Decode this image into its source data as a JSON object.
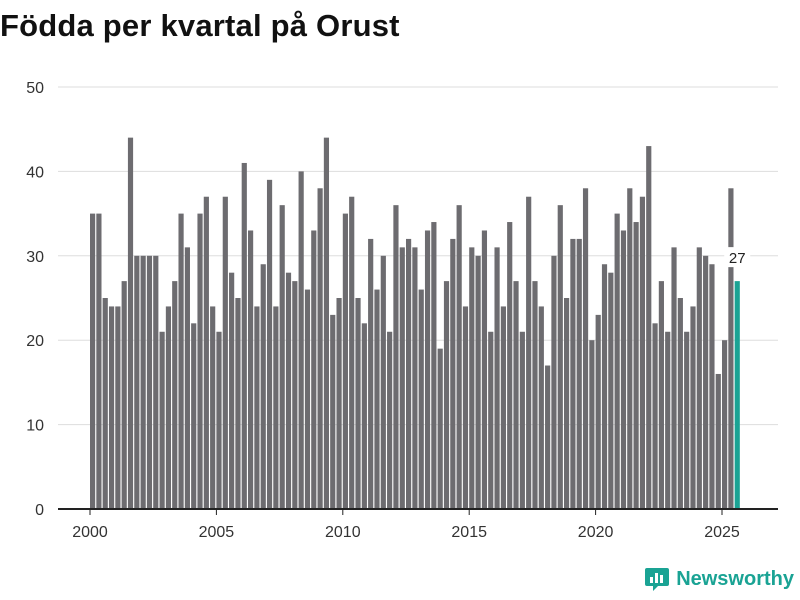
{
  "title": "Födda per kvartal på Orust",
  "colors": {
    "bar": "#6d6c70",
    "highlight": "#1aa394",
    "grid": "#dddddd",
    "axis": "#222222",
    "text": "#333333"
  },
  "brand": {
    "name": "Newsworthy",
    "icon": "chart-bars-icon"
  },
  "chart_data": {
    "type": "bar",
    "title": "Födda per kvartal på Orust",
    "xlabel": "",
    "ylabel": "",
    "ylim": [
      0,
      50
    ],
    "yticks": [
      0,
      10,
      20,
      30,
      40,
      50
    ],
    "xticks": [
      2000,
      2005,
      2010,
      2015,
      2020,
      2025
    ],
    "start_year": 2000,
    "periods_per_year": 4,
    "highlight_last": true,
    "highlight_label": "27",
    "values": [
      35,
      35,
      25,
      24,
      24,
      27,
      44,
      30,
      30,
      30,
      30,
      21,
      24,
      27,
      35,
      31,
      22,
      35,
      37,
      24,
      21,
      37,
      28,
      25,
      41,
      33,
      24,
      29,
      39,
      24,
      36,
      28,
      27,
      40,
      26,
      33,
      38,
      44,
      23,
      25,
      35,
      37,
      25,
      22,
      32,
      26,
      30,
      21,
      36,
      31,
      32,
      31,
      26,
      33,
      34,
      19,
      27,
      32,
      36,
      24,
      31,
      30,
      33,
      21,
      31,
      24,
      34,
      27,
      21,
      37,
      27,
      24,
      17,
      30,
      36,
      25,
      32,
      32,
      38,
      20,
      23,
      29,
      28,
      35,
      33,
      38,
      34,
      37,
      43,
      22,
      27,
      21,
      31,
      25,
      21,
      24,
      31,
      30,
      29,
      16,
      20,
      38,
      27
    ]
  }
}
